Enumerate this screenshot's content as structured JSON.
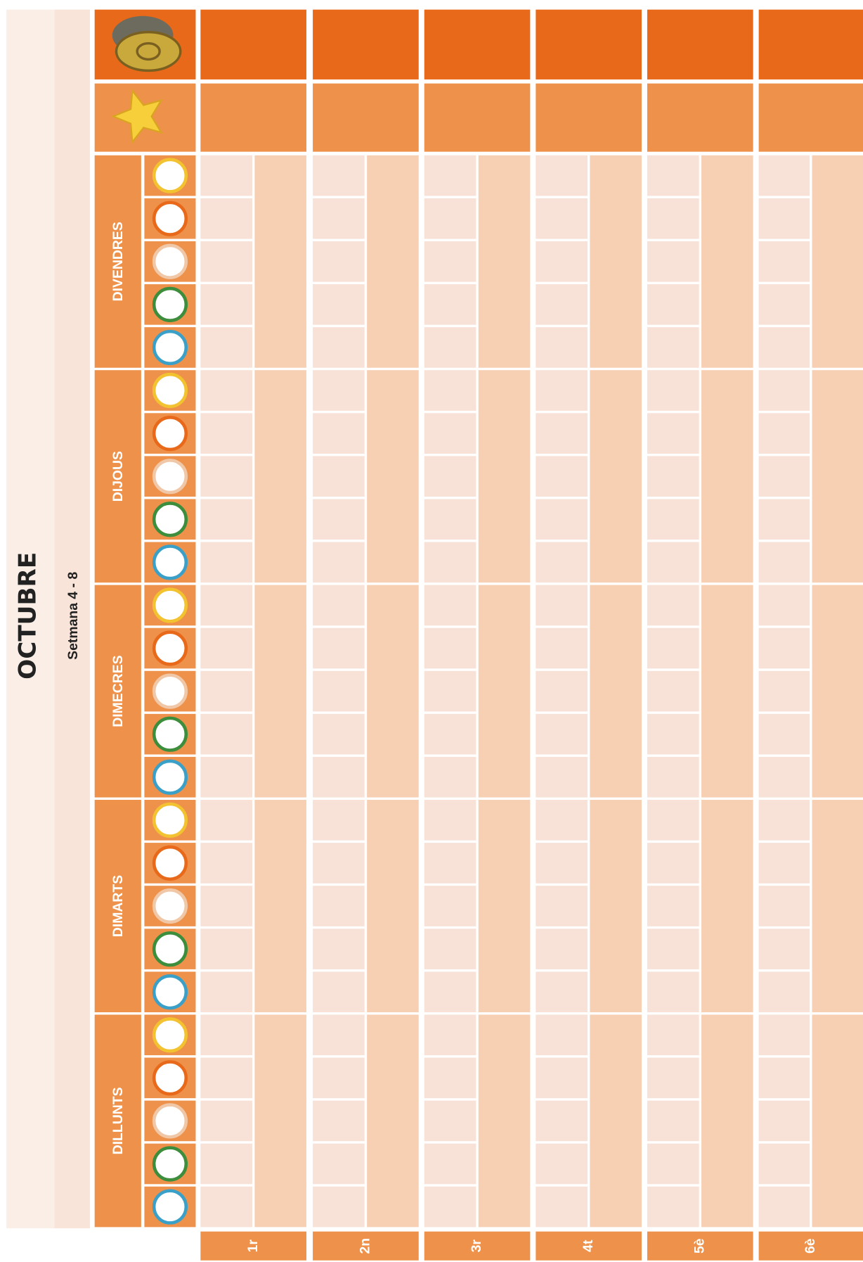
{
  "header": {
    "title": "OCTUBRE",
    "subtitle": "Setmana 4 - 8"
  },
  "days": [
    "DILLUNTS",
    "DIMARTS",
    "DIMECRES",
    "DIJOUS",
    "DIVENDRES"
  ],
  "rows": [
    "1r",
    "2n",
    "3r",
    "4t",
    "5è",
    "6è"
  ]
}
